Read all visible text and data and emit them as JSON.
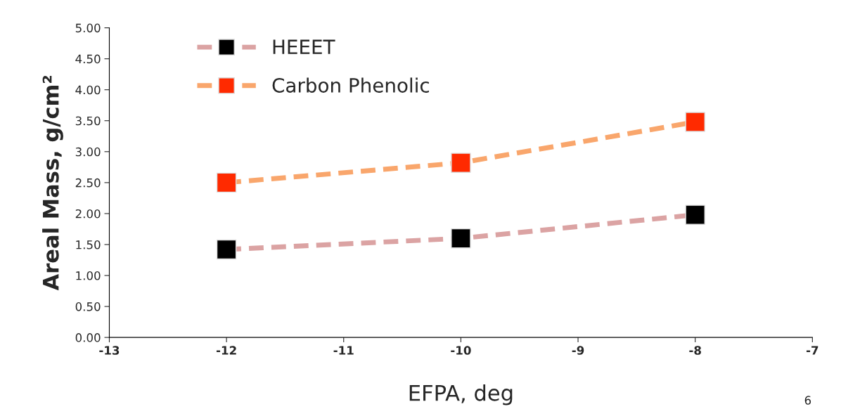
{
  "chart_data": {
    "type": "line",
    "xlabel": "EFPA, deg",
    "ylabel": "Areal Mass, g/cm²",
    "x": [
      -12,
      -10,
      -8
    ],
    "series": [
      {
        "name": "HEEET",
        "color": "#dba3a3",
        "colors": [
          "#000000",
          "#000000",
          "#000000"
        ],
        "values": [
          1.42,
          1.6,
          1.98
        ]
      },
      {
        "name": "Carbon Phenolic",
        "color": "#f9a66c",
        "colors": [
          "#ff2a00",
          "#ff2a00",
          "#ff2a00"
        ],
        "values": [
          2.5,
          2.82,
          3.48
        ]
      }
    ],
    "xlim": [
      -13,
      -7
    ],
    "xticks": [
      -13,
      -12,
      -11,
      -10,
      -9,
      -8,
      -7
    ],
    "ylim": [
      0,
      5
    ],
    "yticks": [
      {
        "value": 0,
        "label": "0.00"
      },
      {
        "value": 0.5,
        "label": "0.50"
      },
      {
        "value": 1,
        "label": "1.00"
      },
      {
        "value": 1.5,
        "label": "1.50"
      },
      {
        "value": 2,
        "label": "2.00"
      },
      {
        "value": 2.5,
        "label": "2.50"
      },
      {
        "value": 3,
        "label": "3.00"
      },
      {
        "value": 3.5,
        "label": "3.50"
      },
      {
        "value": 4,
        "label": "4.00"
      },
      {
        "value": 4.5,
        "label": "4.50"
      },
      {
        "value": 5,
        "label": "5.00"
      }
    ],
    "marker": "square",
    "line_style": "dashed",
    "grid": false,
    "legend": "top left",
    "annotations": [
      "6"
    ]
  }
}
